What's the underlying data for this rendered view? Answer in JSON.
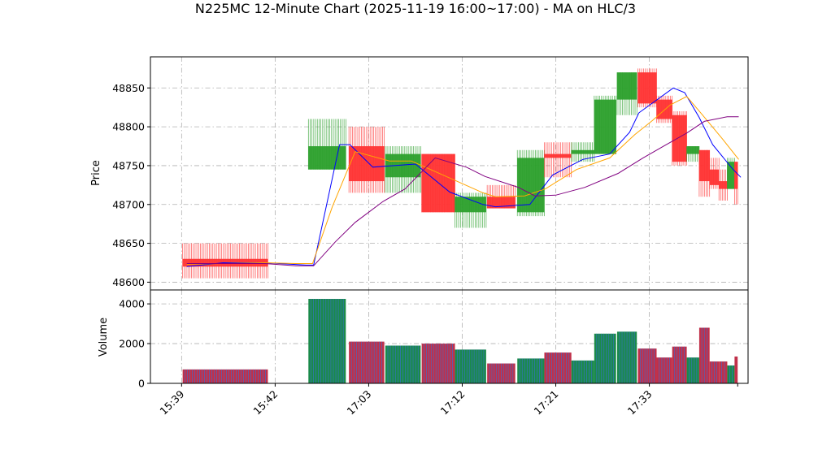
{
  "chart_data": {
    "type": "candlestick",
    "title": "N225MC 12-Minute Chart (2025-11-19 16:00~17:00) - MA on HLC/3",
    "price_panel": {
      "ylabel": "Price",
      "ylim": [
        48590,
        48890
      ],
      "yticks": [
        48600,
        48650,
        48700,
        48750,
        48800,
        48850
      ]
    },
    "volume_panel": {
      "ylabel": "Volume",
      "ylim": [
        0,
        4700
      ],
      "yticks": [
        0,
        2000,
        4000
      ],
      "ytick_labels": [
        "0",
        "2000",
        "4000"
      ]
    },
    "x_tick_labels": [
      "15:39",
      "15:42",
      "17:03",
      "17:12",
      "17:21",
      "17:33"
    ],
    "x_tick_positions": [
      0,
      9,
      18,
      27,
      36,
      45
    ],
    "xlim": [
      -3,
      54.5
    ],
    "colors": {
      "up": "#2ca02c",
      "down": "#ff3333",
      "ma1": "#0000ff",
      "ma2": "#ffa500",
      "ma3": "#800080"
    },
    "candles": [
      {
        "x": 0.1,
        "w": 8.2,
        "o": 48630,
        "h": 48650,
        "l": 48605,
        "c": 48620,
        "v": 700
      },
      {
        "x": 12.2,
        "w": 3.6,
        "o": 48745,
        "h": 48810,
        "l": 48745,
        "c": 48775,
        "v": 4250
      },
      {
        "x": 16.1,
        "w": 3.4,
        "o": 48775,
        "h": 48800,
        "l": 48715,
        "c": 48730,
        "v": 2100
      },
      {
        "x": 19.6,
        "w": 3.4,
        "o": 48735,
        "h": 48775,
        "l": 48715,
        "c": 48765,
        "v": 1900
      },
      {
        "x": 23.1,
        "w": 3.2,
        "o": 48765,
        "h": 48765,
        "l": 48690,
        "c": 48690,
        "v": 2000
      },
      {
        "x": 26.3,
        "w": 3.0,
        "o": 48690,
        "h": 48715,
        "l": 48670,
        "c": 48710,
        "v": 1700
      },
      {
        "x": 29.4,
        "w": 2.7,
        "o": 48710,
        "h": 48725,
        "l": 48695,
        "c": 48695,
        "v": 1000
      },
      {
        "x": 32.3,
        "w": 2.6,
        "o": 48690,
        "h": 48770,
        "l": 48685,
        "c": 48760,
        "v": 1250
      },
      {
        "x": 34.9,
        "w": 2.6,
        "o": 48765,
        "h": 48780,
        "l": 48735,
        "c": 48760,
        "v": 1550
      },
      {
        "x": 37.5,
        "w": 2.2,
        "o": 48765,
        "h": 48780,
        "l": 48755,
        "c": 48770,
        "v": 1150
      },
      {
        "x": 39.7,
        "w": 2.1,
        "o": 48765,
        "h": 48840,
        "l": 48765,
        "c": 48835,
        "v": 2500
      },
      {
        "x": 41.9,
        "w": 1.9,
        "o": 48835,
        "h": 48870,
        "l": 48815,
        "c": 48870,
        "v": 2600
      },
      {
        "x": 43.9,
        "w": 1.8,
        "o": 48870,
        "h": 48875,
        "l": 48825,
        "c": 48830,
        "v": 1750
      },
      {
        "x": 45.7,
        "w": 1.5,
        "o": 48835,
        "h": 48840,
        "l": 48805,
        "c": 48810,
        "v": 1300
      },
      {
        "x": 47.2,
        "w": 1.4,
        "o": 48815,
        "h": 48820,
        "l": 48750,
        "c": 48755,
        "v": 1850
      },
      {
        "x": 48.6,
        "w": 1.2,
        "o": 48765,
        "h": 48775,
        "l": 48755,
        "c": 48775,
        "v": 1300
      },
      {
        "x": 49.8,
        "w": 1.0,
        "o": 48770,
        "h": 48770,
        "l": 48710,
        "c": 48730,
        "v": 2800
      },
      {
        "x": 50.8,
        "w": 0.9,
        "o": 48745,
        "h": 48760,
        "l": 48720,
        "c": 48725,
        "v": 1100
      },
      {
        "x": 51.7,
        "w": 0.8,
        "o": 48730,
        "h": 48745,
        "l": 48705,
        "c": 48720,
        "v": 1100
      },
      {
        "x": 52.5,
        "w": 0.7,
        "o": 48720,
        "h": 48760,
        "l": 48720,
        "c": 48755,
        "v": 900
      },
      {
        "x": 53.2,
        "w": 0.3,
        "o": 48755,
        "h": 48755,
        "l": 48700,
        "c": 48720,
        "v": 1350
      }
    ],
    "ma_lines": [
      {
        "color": "#0000ff",
        "points": [
          [
            0.5,
            48620
          ],
          [
            4,
            48625
          ],
          [
            8,
            48625
          ],
          [
            12,
            48622
          ],
          [
            12.7,
            48622
          ],
          [
            15.2,
            48777
          ],
          [
            16.2,
            48777
          ],
          [
            18.4,
            48748
          ],
          [
            22.5,
            48752
          ],
          [
            25.8,
            48716
          ],
          [
            29,
            48700
          ],
          [
            30.2,
            48697
          ],
          [
            33.5,
            48700
          ],
          [
            35.7,
            48738
          ],
          [
            38.6,
            48758
          ],
          [
            41.2,
            48765
          ],
          [
            43.1,
            48793
          ],
          [
            44,
            48818
          ],
          [
            47.3,
            48850
          ],
          [
            48.4,
            48844
          ],
          [
            49.8,
            48812
          ],
          [
            51.1,
            48777
          ],
          [
            53,
            48746
          ],
          [
            53.8,
            48735
          ],
          [
            54.6,
            48737
          ]
        ]
      },
      {
        "color": "#ffa500",
        "points": [
          [
            0.5,
            48623
          ],
          [
            8,
            48625
          ],
          [
            11,
            48624
          ],
          [
            12.6,
            48624
          ],
          [
            14.5,
            48697
          ],
          [
            16.7,
            48768
          ],
          [
            20,
            48756
          ],
          [
            22.1,
            48756
          ],
          [
            25.8,
            48734
          ],
          [
            29,
            48715
          ],
          [
            30.2,
            48710
          ],
          [
            33,
            48711
          ],
          [
            35,
            48720
          ],
          [
            38,
            48745
          ],
          [
            41.2,
            48760
          ],
          [
            43.6,
            48790
          ],
          [
            45.3,
            48808
          ],
          [
            47,
            48828
          ],
          [
            48.6,
            48839
          ],
          [
            50,
            48817
          ],
          [
            52,
            48785
          ],
          [
            53.6,
            48758
          ],
          [
            54.6,
            48745
          ]
        ]
      },
      {
        "color": "#800080",
        "points": [
          [
            0.5,
            48624
          ],
          [
            8,
            48624
          ],
          [
            11,
            48621
          ],
          [
            12.7,
            48621
          ],
          [
            14.8,
            48652
          ],
          [
            16.7,
            48677
          ],
          [
            19.4,
            48704
          ],
          [
            21.5,
            48720
          ],
          [
            24.4,
            48760
          ],
          [
            27.4,
            48748
          ],
          [
            29.2,
            48736
          ],
          [
            32.4,
            48722
          ],
          [
            34,
            48711
          ],
          [
            36,
            48712
          ],
          [
            38.8,
            48722
          ],
          [
            42,
            48740
          ],
          [
            44.4,
            48760
          ],
          [
            46.5,
            48776
          ],
          [
            48.6,
            48792
          ],
          [
            50.3,
            48807
          ],
          [
            52.5,
            48813
          ],
          [
            53.6,
            48813
          ],
          [
            55.2,
            48805
          ],
          [
            56.5,
            48795
          ],
          [
            57.8,
            48785
          ]
        ]
      }
    ]
  }
}
